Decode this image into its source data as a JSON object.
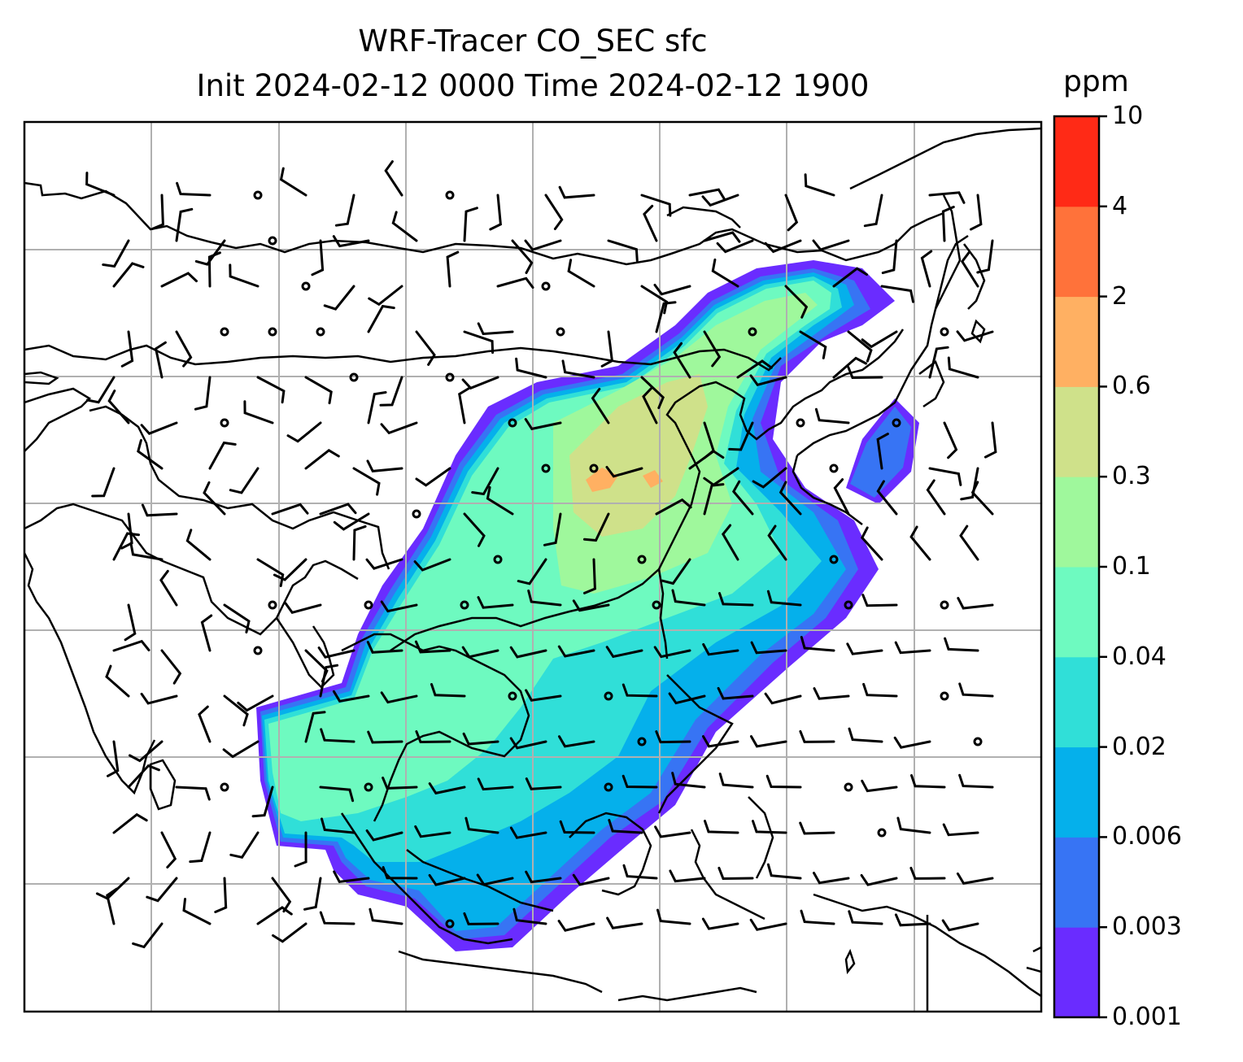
{
  "title": {
    "line1": "WRF-Tracer CO_SEC sfc",
    "line2": "Init 2024-02-12 0000 Time 2024-02-12 1900"
  },
  "colorbar": {
    "unit": "ppm",
    "levels": [
      "0.001",
      "0.003",
      "0.006",
      "0.02",
      "0.04",
      "0.1",
      "0.3",
      "0.6",
      "2",
      "4",
      "10"
    ],
    "colors": [
      "#6a2cff",
      "#3774f4",
      "#05b0eb",
      "#30dfd8",
      "#6efac0",
      "#9ff89c",
      "#cfe18a",
      "#ffb062",
      "#ff723a",
      "#ff2a16"
    ]
  },
  "map": {
    "field": "CO_SEC",
    "level": "sfc",
    "graticule": "on",
    "coastlines": "on",
    "wind_barbs": "on"
  }
}
